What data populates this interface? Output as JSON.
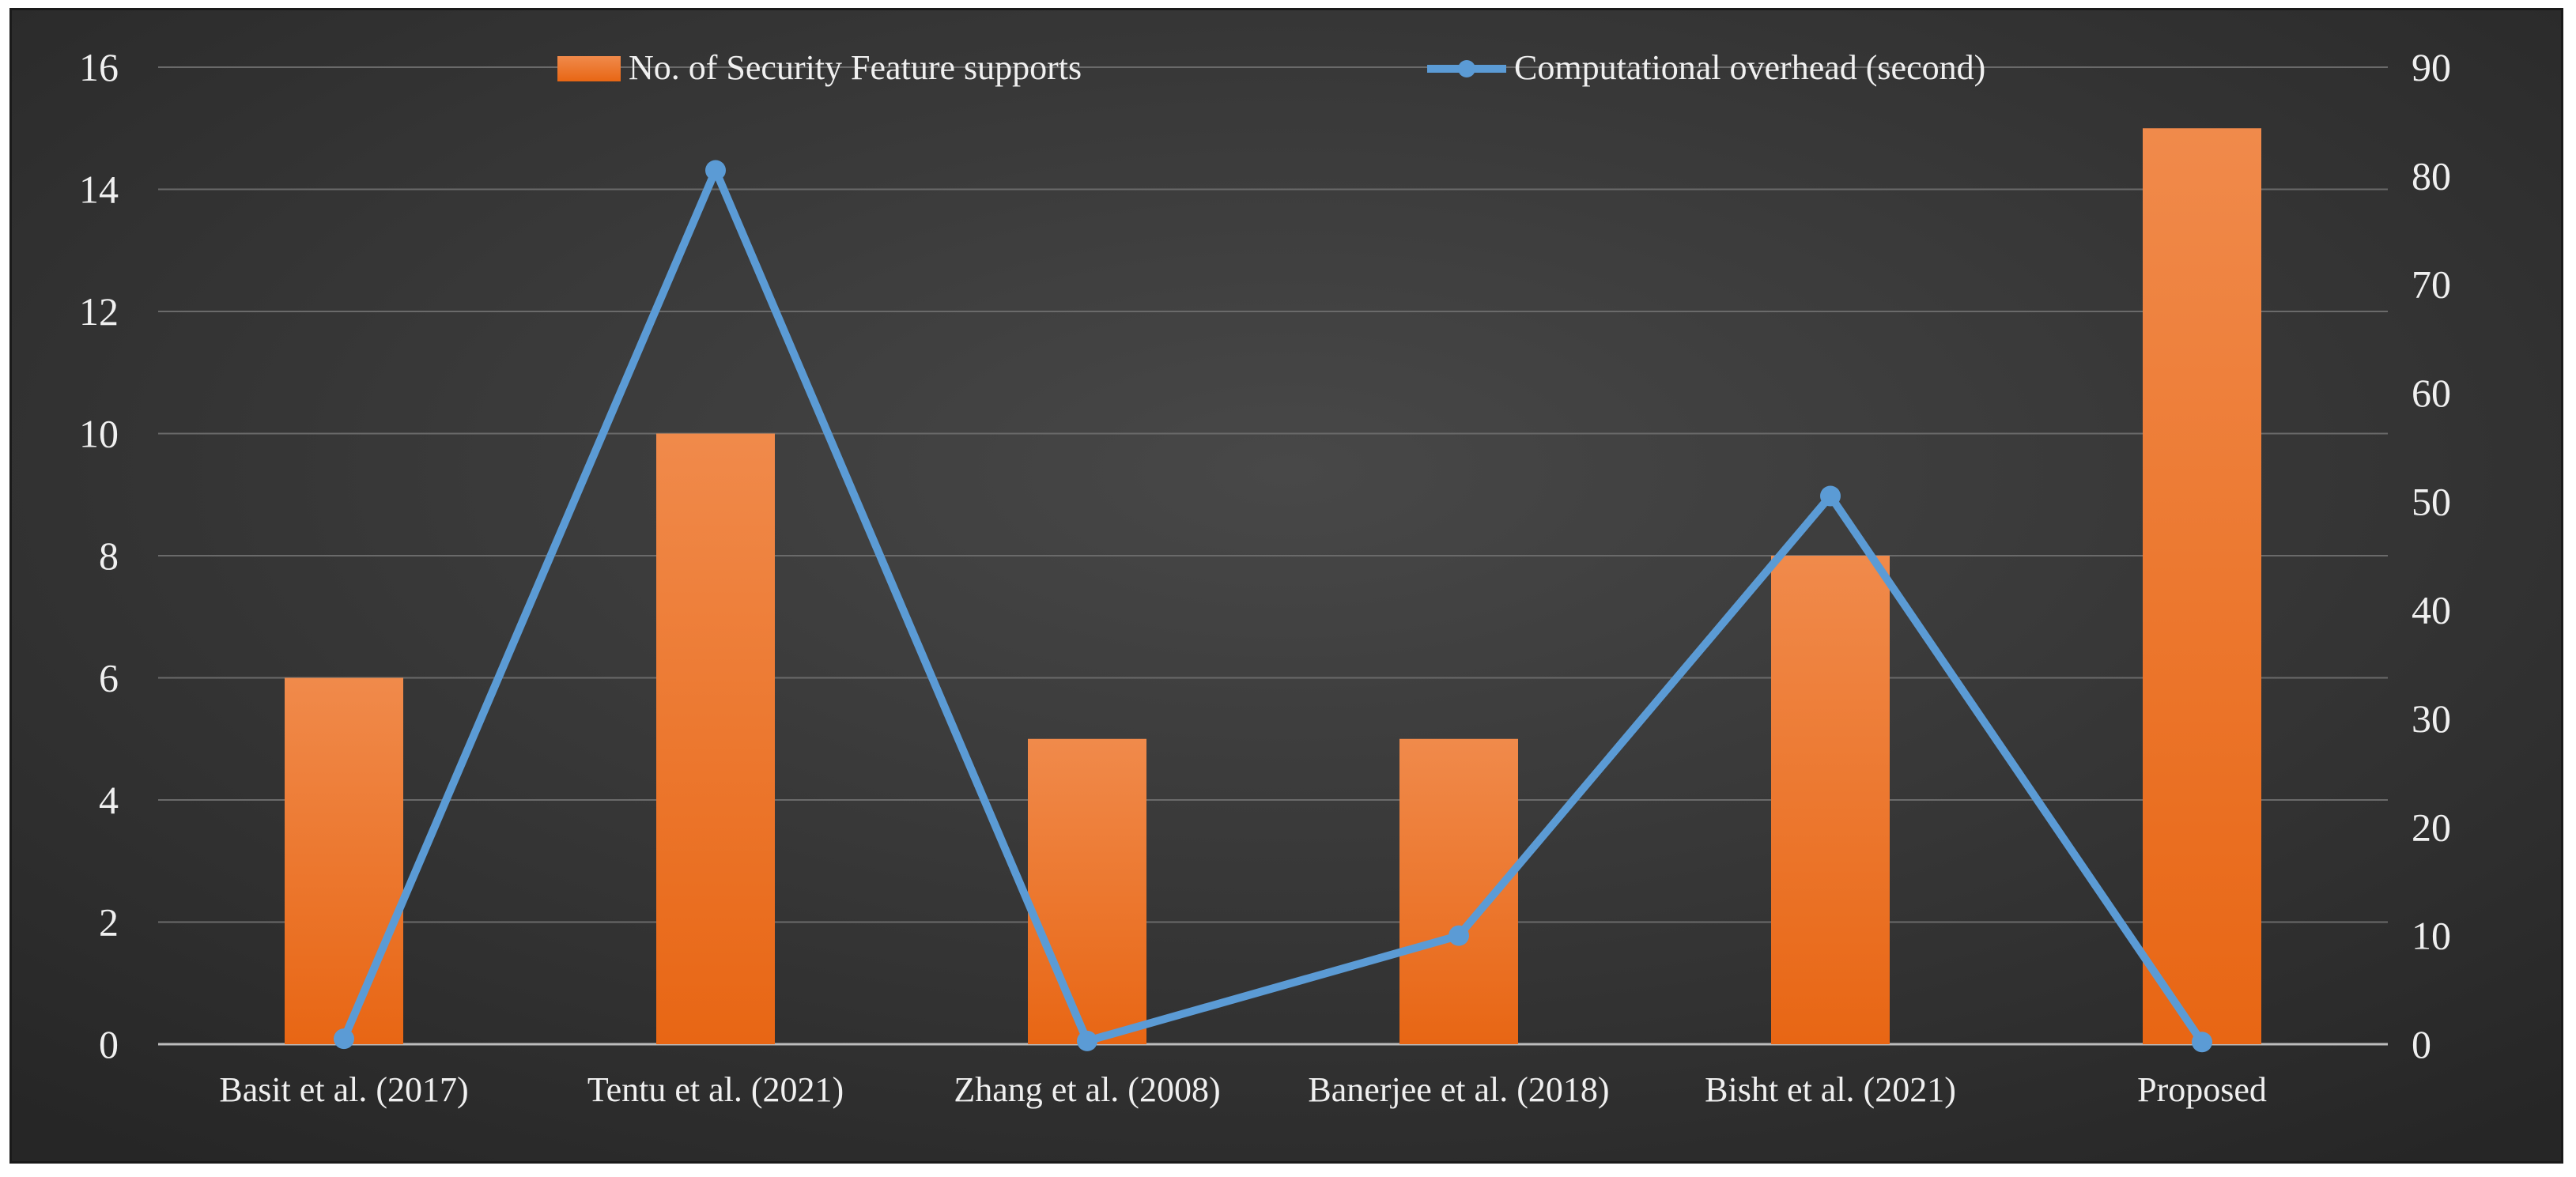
{
  "chart_data": {
    "type": "bar",
    "categories": [
      "Basit et al. (2017)",
      "Tentu et al. (2021)",
      "Zhang et al. (2008)",
      "Banerjee et al. (2018)",
      "Bisht et al. (2021)",
      "Proposed"
    ],
    "series": [
      {
        "name": "No. of Security Feature supports",
        "type": "bar",
        "axis": "left",
        "color": "#ee7a2e",
        "values": [
          6,
          10,
          5,
          5,
          8,
          15
        ]
      },
      {
        "name": "Computational overhead (second)",
        "type": "line",
        "axis": "right",
        "color": "#5b9bd5",
        "values": [
          0.5,
          80.5,
          0.3,
          10,
          50.5,
          0.2
        ]
      }
    ],
    "y_left": {
      "min": 0,
      "max": 16,
      "step": 2,
      "ticks": [
        "0",
        "2",
        "4",
        "6",
        "8",
        "10",
        "12",
        "14",
        "16"
      ]
    },
    "y_right": {
      "min": 0,
      "max": 90,
      "step": 10,
      "ticks": [
        "0",
        "10",
        "20",
        "30",
        "40",
        "50",
        "60",
        "70",
        "80",
        "90"
      ]
    },
    "legend_position": "top",
    "grid": true,
    "background_color": "#3a3a3a"
  }
}
